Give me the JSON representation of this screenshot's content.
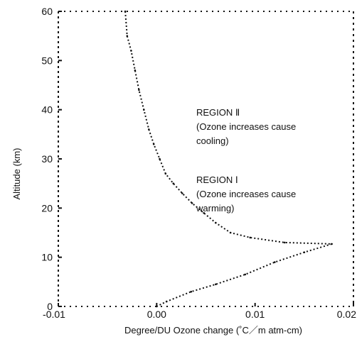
{
  "chart_data": {
    "type": "line",
    "xlabel": "Degree/DU Ozone change (˚C／m atm-cm)",
    "ylabel": "Altitude (km)",
    "xlim": [
      -0.01,
      0.02
    ],
    "ylim": [
      0,
      60
    ],
    "x_tick_labels": [
      "-0.01",
      "0.00",
      "0.01",
      "0.02"
    ],
    "x_tick_values": [
      -0.01,
      0.0,
      0.01,
      0.02
    ],
    "y_tick_labels": [
      "0",
      "10",
      "20",
      "30",
      "40",
      "50",
      "60"
    ],
    "y_tick_values": [
      0,
      10,
      20,
      30,
      40,
      50,
      60
    ],
    "grid": false,
    "annotations": [
      {
        "id": "region2",
        "lines": [
          "REGION Ⅱ",
          "(Ozone increases cause",
          "cooling)"
        ]
      },
      {
        "id": "region1",
        "lines": [
          "REGION Ⅰ",
          "(Ozone increases cause",
          "warming)"
        ]
      }
    ],
    "series": [
      {
        "style": "dotted-step",
        "x": [
          -0.0032,
          -0.003,
          -0.0026,
          -0.0022,
          -0.0018,
          -0.0013,
          -0.0008,
          -0.0003,
          0.0003,
          0.0009,
          0.0017,
          0.0026,
          0.0036,
          0.0048,
          0.006,
          0.0075,
          0.0095,
          0.013,
          0.0178,
          0.015,
          0.012,
          0.009,
          0.006,
          0.0035,
          0.001,
          0.0
        ],
        "y": [
          60,
          55,
          52,
          48,
          44,
          40,
          36,
          33,
          30,
          27,
          25,
          23,
          21,
          19,
          17,
          15,
          14,
          13,
          12.7,
          11,
          9,
          6.5,
          4.5,
          3,
          1,
          0
        ]
      }
    ]
  }
}
